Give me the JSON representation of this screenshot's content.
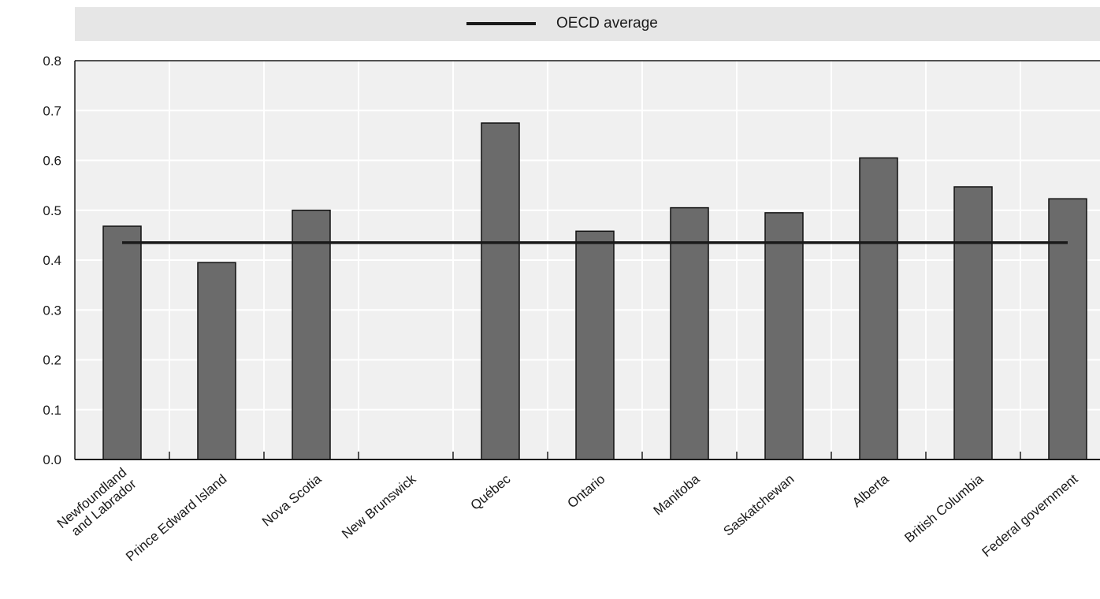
{
  "chart_data": {
    "type": "bar",
    "categories": [
      [
        "Newfoundland",
        "and Labrador"
      ],
      [
        "Prince Edward Island"
      ],
      [
        "Nova Scotia"
      ],
      [
        "New Brunswick"
      ],
      [
        "Québec"
      ],
      [
        "Ontario"
      ],
      [
        "Manitoba"
      ],
      [
        "Saskatchewan"
      ],
      [
        "Alberta"
      ],
      [
        "British Columbia"
      ],
      [
        "Federal government"
      ]
    ],
    "values": [
      0.468,
      0.395,
      0.5,
      null,
      0.675,
      0.458,
      0.505,
      0.495,
      0.605,
      0.547,
      0.523
    ],
    "reference_line": {
      "name": "OECD average",
      "value": 0.435
    },
    "ylim": [
      0,
      0.8
    ],
    "yticks": [
      "0.0",
      "0.1",
      "0.2",
      "0.3",
      "0.4",
      "0.5",
      "0.6",
      "0.7",
      "0.8"
    ],
    "grid": true,
    "legend_position": "top",
    "colors": {
      "bar": "#6b6b6b",
      "bar_edge": "#111111",
      "line": "#1a1a1a",
      "plot_bg": "#f0f0f0",
      "grid": "#ffffff",
      "legend_bg": "#e6e6e6"
    }
  },
  "legend": {
    "label": "OECD average"
  }
}
